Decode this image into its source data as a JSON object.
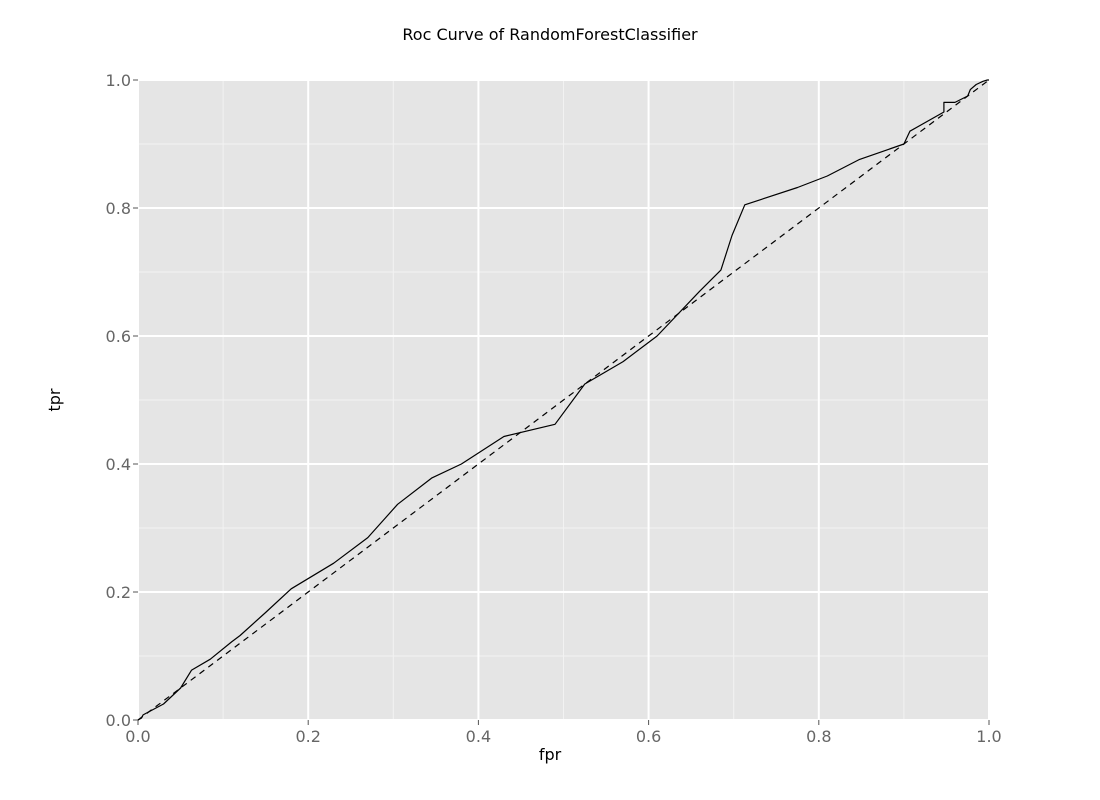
{
  "chart_data": {
    "type": "line",
    "title": "Roc Curve of RandomForestClassifier",
    "xlabel": "fpr",
    "ylabel": "tpr",
    "xlim": [
      0,
      1
    ],
    "ylim": [
      0,
      1
    ],
    "xticks": [
      "0.0",
      "0.2",
      "0.4",
      "0.6",
      "0.8",
      "1.0"
    ],
    "yticks": [
      "0.0",
      "0.2",
      "0.4",
      "0.6",
      "0.8",
      "1.0"
    ],
    "grid": true,
    "panel_background": "#e5e5e5",
    "grid_color": "#ffffff",
    "line_color": "#000000",
    "series": [
      {
        "style": "solid",
        "x": [
          0.0,
          0.004,
          0.006,
          0.03,
          0.05,
          0.063,
          0.085,
          0.11,
          0.12,
          0.15,
          0.18,
          0.23,
          0.27,
          0.305,
          0.345,
          0.38,
          0.43,
          0.49,
          0.525,
          0.57,
          0.61,
          0.66,
          0.685,
          0.698,
          0.713,
          0.775,
          0.81,
          0.848,
          0.9,
          0.907,
          0.947,
          0.947,
          0.96,
          0.975,
          0.978,
          0.985,
          0.993,
          0.998,
          1.0
        ],
        "y": [
          0.0,
          0.003,
          0.008,
          0.025,
          0.05,
          0.078,
          0.095,
          0.122,
          0.132,
          0.168,
          0.205,
          0.245,
          0.285,
          0.337,
          0.378,
          0.4,
          0.443,
          0.462,
          0.525,
          0.56,
          0.6,
          0.67,
          0.703,
          0.757,
          0.805,
          0.832,
          0.85,
          0.876,
          0.9,
          0.92,
          0.95,
          0.965,
          0.965,
          0.975,
          0.985,
          0.993,
          0.998,
          1.0,
          1.0
        ]
      },
      {
        "style": "dashed",
        "x": [
          0,
          1
        ],
        "y": [
          0,
          1
        ]
      }
    ]
  }
}
